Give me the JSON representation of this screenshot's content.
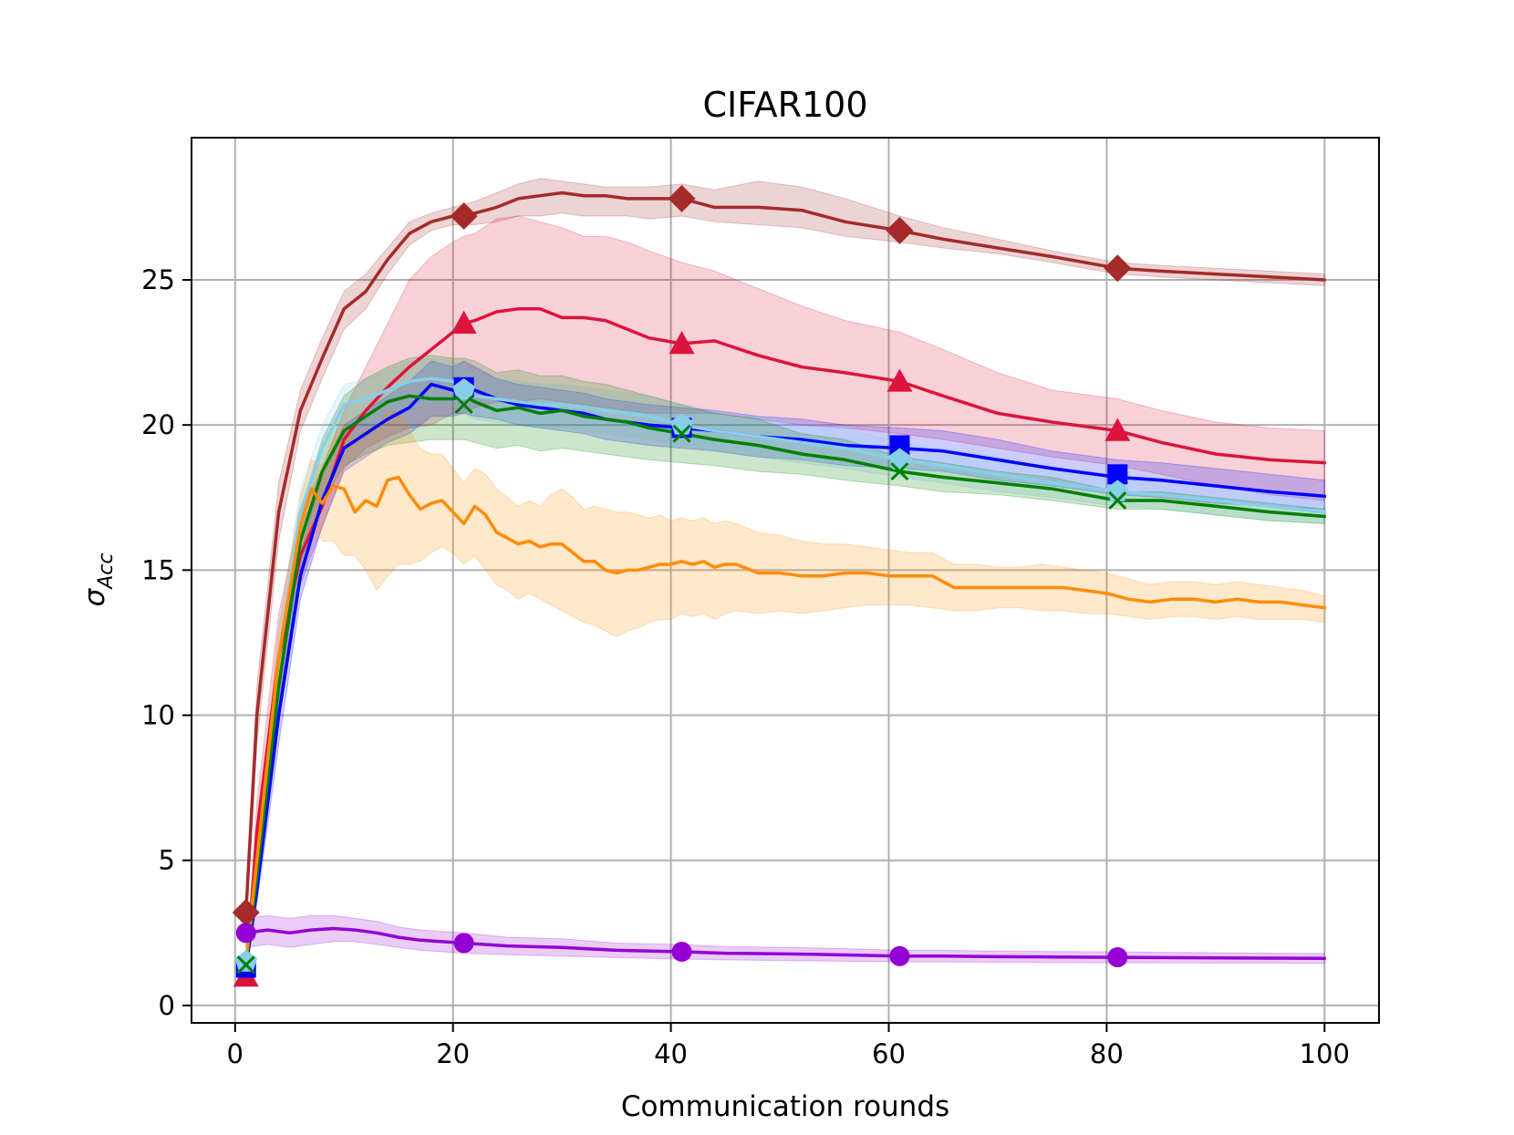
{
  "chart_data": {
    "type": "line",
    "title": "CIFAR100",
    "xlabel": "Communication rounds",
    "ylabel_base": "σ",
    "ylabel_sub": "Acc",
    "xlim": [
      -4,
      105
    ],
    "ylim": [
      -0.6,
      29.9
    ],
    "xticks": [
      0,
      20,
      40,
      60,
      80,
      100
    ],
    "yticks": [
      0,
      5,
      10,
      15,
      20,
      25
    ],
    "xtick_labels": [
      "0",
      "20",
      "40",
      "60",
      "80",
      "100"
    ],
    "ytick_labels": [
      "0",
      "5",
      "10",
      "15",
      "20",
      "25"
    ],
    "grid": true,
    "marker_x": [
      1,
      21,
      41,
      61,
      81
    ],
    "series": [
      {
        "name": "brown-diamond",
        "color": "#a52a2a",
        "marker": "diamond",
        "line_x": [
          1,
          2,
          4,
          6,
          8,
          10,
          12,
          14,
          16,
          18,
          20,
          22,
          24,
          26,
          28,
          30,
          32,
          34,
          36,
          38,
          41,
          44,
          48,
          52,
          56,
          61,
          65,
          70,
          75,
          78,
          81,
          85,
          90,
          95,
          100
        ],
        "line_y": [
          3.2,
          10,
          17,
          20.5,
          22.3,
          24,
          24.6,
          25.7,
          26.6,
          27.0,
          27.2,
          27.3,
          27.5,
          27.8,
          27.9,
          28.0,
          27.9,
          27.9,
          27.8,
          27.8,
          27.8,
          27.5,
          27.5,
          27.4,
          27.0,
          26.7,
          26.4,
          26.1,
          25.8,
          25.6,
          25.4,
          25.3,
          25.2,
          25.1,
          25.0
        ],
        "band_low": [
          2.8,
          9,
          16,
          19.8,
          21.6,
          23.3,
          24.0,
          25.2,
          26.2,
          26.7,
          26.9,
          26.9,
          27.0,
          27.2,
          27.2,
          27.3,
          27.2,
          27.2,
          27.2,
          27.1,
          27.2,
          27.0,
          26.9,
          26.8,
          26.5,
          26.3,
          26.1,
          25.9,
          25.6,
          25.4,
          25.2,
          25.1,
          25.0,
          24.9,
          24.8
        ],
        "band_high": [
          3.6,
          11,
          18,
          21.2,
          23.0,
          24.6,
          25.2,
          26.1,
          27.0,
          27.3,
          27.5,
          27.7,
          28.0,
          28.3,
          28.5,
          28.4,
          28.3,
          28.2,
          28.2,
          28.2,
          28.3,
          28.1,
          28.4,
          28.2,
          27.8,
          27.2,
          26.8,
          26.4,
          26.0,
          25.8,
          25.6,
          25.5,
          25.4,
          25.3,
          25.2
        ],
        "marker_y": [
          3.2,
          27.2,
          27.8,
          26.7,
          25.4
        ]
      },
      {
        "name": "crimson-triangle",
        "color": "#dc143c",
        "marker": "triangle",
        "line_x": [
          1,
          2,
          4,
          6,
          8,
          10,
          12,
          14,
          16,
          18,
          20,
          21,
          22,
          24,
          26,
          28,
          30,
          32,
          34,
          36,
          38,
          41,
          44,
          48,
          52,
          56,
          61,
          65,
          70,
          75,
          81,
          85,
          90,
          95,
          100
        ],
        "line_y": [
          1.0,
          6,
          12,
          15.5,
          17.2,
          19.5,
          20.5,
          21.3,
          22.0,
          22.6,
          23.2,
          23.5,
          23.6,
          23.9,
          24.0,
          24.0,
          23.7,
          23.7,
          23.6,
          23.3,
          23.0,
          22.8,
          22.9,
          22.4,
          22.0,
          21.8,
          21.5,
          21.0,
          20.4,
          20.1,
          19.8,
          19.4,
          19.0,
          18.8,
          18.7
        ],
        "band_low": [
          0.8,
          5,
          10.5,
          14.5,
          16.5,
          18.5,
          19.2,
          19.6,
          19.9,
          20.0,
          20.4,
          20.4,
          20.6,
          20.8,
          20.8,
          20.9,
          20.8,
          20.7,
          20.6,
          20.5,
          20.4,
          20.4,
          20.4,
          20.2,
          20.0,
          19.9,
          19.7,
          19.5,
          19.2,
          18.9,
          18.6,
          18.3,
          17.9,
          17.6,
          17.4
        ],
        "band_high": [
          1.2,
          7,
          13.5,
          17,
          18.5,
          20.5,
          22.0,
          23.5,
          25.0,
          25.8,
          26.3,
          26.5,
          26.6,
          27.1,
          27.2,
          27.0,
          26.8,
          26.5,
          26.5,
          26.3,
          26.0,
          25.6,
          25.3,
          24.7,
          24.1,
          23.6,
          23.2,
          22.6,
          21.8,
          21.2,
          20.9,
          20.5,
          20.1,
          19.9,
          19.8
        ],
        "marker_y": [
          1.0,
          23.5,
          22.8,
          21.5,
          19.8
        ]
      },
      {
        "name": "blue-square",
        "color": "#0000ff",
        "marker": "square",
        "line_x": [
          1,
          2,
          4,
          6,
          8,
          10,
          12,
          14,
          16,
          18,
          20,
          21,
          22,
          24,
          26,
          28,
          30,
          32,
          34,
          36,
          38,
          41,
          44,
          48,
          52,
          56,
          61,
          65,
          70,
          75,
          81,
          85,
          90,
          95,
          100
        ],
        "line_y": [
          1.3,
          4,
          10,
          14.8,
          17.4,
          19.2,
          19.7,
          20.2,
          20.6,
          21.4,
          21.2,
          21.3,
          21.2,
          20.9,
          20.7,
          20.6,
          20.5,
          20.4,
          20.2,
          20.1,
          20.0,
          19.9,
          19.8,
          19.6,
          19.5,
          19.3,
          19.2,
          19.1,
          18.8,
          18.5,
          18.2,
          18.1,
          17.9,
          17.7,
          17.55
        ],
        "band_low": [
          1.1,
          3.5,
          9,
          14.0,
          16.5,
          18.4,
          18.9,
          19.4,
          19.7,
          20.3,
          20.3,
          20.4,
          20.3,
          20.2,
          20.0,
          19.9,
          19.8,
          19.7,
          19.5,
          19.4,
          19.3,
          19.2,
          19.1,
          18.9,
          18.8,
          18.6,
          18.5,
          18.4,
          18.1,
          17.9,
          17.6,
          17.5,
          17.3,
          17.2,
          17.1
        ],
        "band_high": [
          1.5,
          4.5,
          11,
          15.6,
          18.3,
          20.0,
          20.5,
          21.0,
          21.5,
          22.2,
          22.0,
          22.2,
          22.0,
          21.6,
          21.4,
          21.3,
          21.2,
          21.1,
          20.9,
          20.8,
          20.7,
          20.6,
          20.5,
          20.3,
          20.2,
          20.0,
          19.9,
          19.8,
          19.5,
          19.1,
          18.8,
          18.7,
          18.5,
          18.3,
          18.1
        ],
        "marker_y": [
          1.3,
          21.3,
          19.9,
          19.3,
          18.3
        ]
      },
      {
        "name": "skyblue-pentagon",
        "color": "#87ceeb",
        "marker": "pentagon",
        "line_x": [
          1,
          2,
          4,
          6,
          8,
          10,
          12,
          14,
          16,
          18,
          20,
          21,
          22,
          24,
          26,
          28,
          30,
          32,
          34,
          36,
          38,
          41,
          44,
          48,
          52,
          56,
          61,
          65,
          70,
          75,
          81,
          85,
          90,
          95,
          100
        ],
        "line_y": [
          1.5,
          4.5,
          12,
          17.0,
          19.2,
          20.7,
          20.9,
          21.2,
          21.5,
          21.6,
          21.5,
          21.2,
          21.0,
          20.9,
          20.8,
          20.7,
          20.7,
          20.6,
          20.5,
          20.4,
          20.3,
          20.0,
          19.8,
          19.6,
          19.4,
          19.2,
          18.8,
          18.6,
          18.3,
          18.0,
          17.7,
          17.6,
          17.4,
          17.2,
          17.0
        ],
        "band_low": [
          1.3,
          4.0,
          11,
          16.2,
          18.4,
          19.9,
          20.1,
          20.4,
          20.7,
          20.8,
          20.7,
          20.4,
          20.2,
          20.1,
          20.0,
          19.9,
          19.9,
          19.8,
          19.7,
          19.6,
          19.5,
          19.3,
          19.1,
          18.9,
          18.7,
          18.5,
          18.2,
          18.0,
          17.7,
          17.5,
          17.2,
          17.1,
          16.9,
          16.7,
          16.6
        ],
        "band_high": [
          1.7,
          5.0,
          13,
          17.8,
          20.0,
          21.4,
          21.6,
          21.9,
          22.2,
          22.3,
          22.2,
          21.9,
          21.7,
          21.6,
          21.5,
          21.4,
          21.4,
          21.3,
          21.2,
          21.1,
          21.0,
          20.7,
          20.5,
          20.3,
          20.1,
          19.9,
          19.4,
          19.2,
          18.9,
          18.5,
          18.2,
          18.1,
          17.9,
          17.7,
          17.5
        ],
        "marker_y": [
          1.5,
          21.2,
          20.0,
          18.8,
          17.7
        ]
      },
      {
        "name": "green-x",
        "color": "#008000",
        "marker": "x",
        "line_x": [
          1,
          2,
          4,
          6,
          8,
          10,
          12,
          14,
          16,
          18,
          20,
          21,
          22,
          24,
          26,
          28,
          30,
          32,
          34,
          36,
          38,
          41,
          44,
          48,
          52,
          56,
          61,
          65,
          70,
          75,
          81,
          85,
          90,
          95,
          100
        ],
        "line_y": [
          1.4,
          4.5,
          11,
          16.0,
          18.4,
          19.8,
          20.3,
          20.8,
          21.0,
          20.9,
          20.9,
          21.0,
          20.8,
          20.5,
          20.6,
          20.4,
          20.5,
          20.3,
          20.2,
          20.1,
          19.9,
          19.7,
          19.5,
          19.3,
          19.0,
          18.8,
          18.4,
          18.2,
          18.0,
          17.8,
          17.4,
          17.4,
          17.2,
          17.0,
          16.85
        ],
        "band_low": [
          1.2,
          4.0,
          10,
          15.0,
          17.3,
          18.6,
          19.0,
          19.3,
          19.4,
          19.5,
          19.5,
          19.5,
          19.4,
          19.2,
          19.3,
          19.1,
          19.2,
          19.1,
          19.0,
          18.9,
          18.8,
          18.7,
          18.6,
          18.4,
          18.3,
          18.1,
          17.9,
          17.7,
          17.6,
          17.4,
          17.1,
          17.1,
          16.9,
          16.7,
          16.6
        ],
        "band_high": [
          1.6,
          5.0,
          12,
          17.0,
          19.5,
          21.0,
          21.6,
          22.0,
          22.3,
          22.4,
          22.3,
          22.3,
          22.2,
          21.8,
          21.9,
          21.7,
          21.7,
          21.5,
          21.4,
          21.2,
          21.0,
          20.7,
          20.4,
          20.2,
          19.7,
          19.5,
          18.9,
          18.7,
          18.4,
          18.2,
          17.7,
          17.7,
          17.5,
          17.3,
          17.1
        ],
        "marker_y": [
          1.4,
          20.7,
          19.7,
          18.4,
          17.4
        ]
      },
      {
        "name": "orange",
        "color": "#ff8c00",
        "marker": "none",
        "line_x": [
          1,
          2,
          4,
          6,
          7,
          8,
          9,
          10,
          11,
          12,
          13,
          14,
          15,
          16,
          17,
          18,
          19,
          20,
          21,
          22,
          23,
          24,
          25,
          26,
          27,
          28,
          29,
          30,
          31,
          32,
          33,
          34,
          35,
          36,
          37,
          38,
          39,
          40,
          41,
          42,
          43,
          44,
          45,
          46,
          48,
          50,
          52,
          54,
          56,
          58,
          60,
          62,
          64,
          66,
          68,
          70,
          72,
          74,
          76,
          78,
          80,
          82,
          84,
          86,
          88,
          90,
          92,
          94,
          96,
          98,
          100
        ],
        "line_y": [
          1.5,
          5,
          12,
          16.5,
          17.8,
          17.3,
          17.9,
          17.8,
          17.0,
          17.4,
          17.2,
          18.1,
          18.2,
          17.6,
          17.1,
          17.3,
          17.4,
          17.0,
          16.6,
          17.2,
          16.9,
          16.3,
          16.1,
          15.9,
          16.0,
          15.8,
          15.9,
          15.9,
          15.6,
          15.3,
          15.3,
          15.0,
          14.9,
          15.0,
          15.0,
          15.1,
          15.2,
          15.2,
          15.3,
          15.2,
          15.3,
          15.1,
          15.2,
          15.2,
          14.9,
          14.9,
          14.8,
          14.8,
          14.9,
          14.9,
          14.8,
          14.8,
          14.8,
          14.4,
          14.4,
          14.4,
          14.4,
          14.4,
          14.4,
          14.3,
          14.2,
          14.0,
          13.9,
          14.0,
          14.0,
          13.9,
          14.0,
          13.9,
          13.9,
          13.8,
          13.7
        ],
        "band_low": [
          1.3,
          4.5,
          11,
          15.5,
          16.5,
          16.0,
          16.0,
          15.5,
          15.5,
          15.0,
          14.3,
          14.8,
          15.2,
          15.2,
          15.3,
          15.6,
          15.8,
          15.6,
          15.2,
          15.5,
          15.0,
          14.5,
          14.3,
          14.0,
          14.2,
          14.0,
          13.8,
          13.6,
          13.4,
          13.2,
          13.1,
          12.9,
          12.7,
          12.9,
          13.0,
          13.2,
          13.3,
          13.3,
          13.5,
          13.4,
          13.5,
          13.3,
          13.5,
          13.6,
          13.5,
          13.6,
          13.5,
          13.6,
          13.7,
          13.8,
          13.8,
          13.8,
          13.7,
          13.6,
          13.6,
          13.7,
          13.7,
          13.6,
          13.6,
          13.5,
          13.5,
          13.4,
          13.3,
          13.4,
          13.4,
          13.3,
          13.4,
          13.3,
          13.3,
          13.3,
          13.2
        ],
        "band_high": [
          1.7,
          5.5,
          13,
          17.5,
          18.8,
          18.6,
          19.5,
          20.0,
          19.5,
          19.9,
          19.8,
          20.5,
          20.4,
          19.8,
          19.2,
          19.0,
          19.0,
          18.5,
          18.0,
          18.5,
          18.3,
          17.8,
          17.5,
          17.2,
          17.4,
          17.2,
          17.6,
          17.8,
          17.5,
          17.1,
          17.2,
          17.1,
          17.0,
          17.0,
          16.9,
          16.8,
          16.9,
          16.7,
          16.8,
          16.7,
          16.8,
          16.6,
          16.7,
          16.6,
          16.3,
          16.2,
          16.0,
          15.9,
          15.9,
          15.8,
          15.7,
          15.6,
          15.6,
          15.2,
          15.2,
          15.1,
          15.1,
          15.2,
          15.1,
          15.0,
          14.9,
          14.7,
          14.5,
          14.6,
          14.6,
          14.5,
          14.6,
          14.5,
          14.4,
          14.3,
          14.1
        ]
      },
      {
        "name": "purple-circle",
        "color": "#9400d3",
        "marker": "circle",
        "line_x": [
          1,
          3,
          5,
          7,
          9,
          11,
          13,
          15,
          17,
          19,
          21,
          25,
          30,
          35,
          41,
          45,
          50,
          55,
          61,
          65,
          70,
          75,
          81,
          85,
          90,
          95,
          100
        ],
        "line_y": [
          2.5,
          2.6,
          2.5,
          2.6,
          2.65,
          2.6,
          2.5,
          2.35,
          2.25,
          2.2,
          2.15,
          2.05,
          2.0,
          1.9,
          1.85,
          1.8,
          1.78,
          1.75,
          1.7,
          1.7,
          1.68,
          1.67,
          1.66,
          1.65,
          1.64,
          1.63,
          1.62
        ],
        "band_low": [
          2.0,
          2.1,
          2.0,
          2.1,
          2.2,
          2.2,
          2.1,
          2.0,
          1.9,
          1.85,
          1.8,
          1.75,
          1.7,
          1.65,
          1.6,
          1.57,
          1.55,
          1.53,
          1.5,
          1.5,
          1.49,
          1.48,
          1.47,
          1.47,
          1.46,
          1.46,
          1.45
        ],
        "band_high": [
          3.0,
          3.1,
          3.0,
          3.1,
          3.1,
          3.0,
          2.9,
          2.7,
          2.6,
          2.55,
          2.5,
          2.35,
          2.3,
          2.15,
          2.1,
          2.03,
          2.0,
          1.97,
          1.9,
          1.9,
          1.87,
          1.86,
          1.85,
          1.83,
          1.82,
          1.8,
          1.79
        ],
        "marker_y": [
          2.5,
          2.15,
          1.85,
          1.7,
          1.66
        ]
      }
    ]
  }
}
